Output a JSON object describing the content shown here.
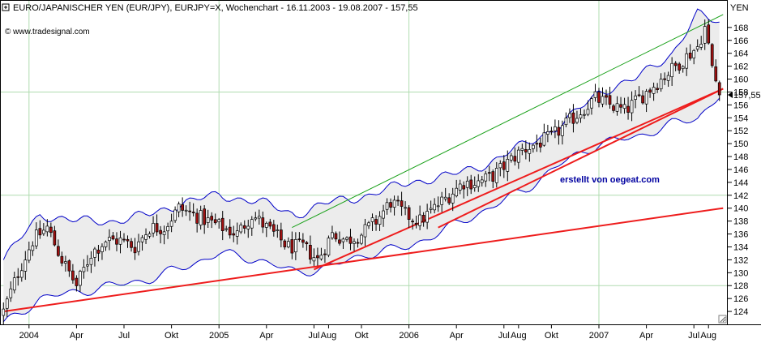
{
  "title_line": "EURO/JAPANISCHER YEN (EUR/JPY), EURJPY=X, Wochenchart - 16.11.2003 - 19.08.2007 - 157,55",
  "source_label": "© www.tradesignal.com",
  "watermark": "erstellt von oegeat.com",
  "colors": {
    "background": "#ffffff",
    "grid": "#b0dcb0",
    "candle_up": "#ffffff",
    "candle_down": "#a01010",
    "candle_border": "#000000",
    "bollinger": "#0000c8",
    "bollinger_fill": "#ececec",
    "trendline_support": "#ee1c1c",
    "trendline_channel_top": "#18a018",
    "price_marker": "#000000"
  },
  "chart_data": {
    "type": "candlestick",
    "instrument": "EUR/JPY",
    "period": "weekly",
    "date_range": [
      "2003-11-16",
      "2007-08-19"
    ],
    "last_value": "157,55",
    "last_value_num": 157.55,
    "y_axis": {
      "label": "YEN",
      "min": 122,
      "max": 172,
      "ticks": [
        124,
        126,
        128,
        130,
        132,
        134,
        136,
        138,
        140,
        142,
        144,
        146,
        148,
        150,
        152,
        154,
        156,
        158,
        160,
        162,
        164,
        166,
        168
      ]
    },
    "x_axis": {
      "tick_labels": [
        "2004",
        "Apr",
        "Jul",
        "Okt",
        "2005",
        "Apr",
        "Jul",
        "Aug",
        "Okt",
        "2006",
        "Apr",
        "Jul",
        "Aug",
        "Okt",
        "2007",
        "Apr",
        "Jul",
        "Aug"
      ],
      "tick_weeks": [
        7,
        20,
        33,
        46,
        59,
        72,
        85,
        89,
        98,
        111,
        124,
        137,
        141,
        150,
        163,
        176,
        189,
        193
      ]
    },
    "candle_weeks": 197,
    "close_anchors": [
      [
        0,
        124
      ],
      [
        4,
        130
      ],
      [
        8,
        135
      ],
      [
        12,
        137
      ],
      [
        16,
        132
      ],
      [
        20,
        128
      ],
      [
        24,
        133
      ],
      [
        28,
        135
      ],
      [
        32,
        135
      ],
      [
        36,
        134
      ],
      [
        40,
        137
      ],
      [
        44,
        137
      ],
      [
        48,
        140
      ],
      [
        52,
        139
      ],
      [
        56,
        138
      ],
      [
        60,
        137
      ],
      [
        64,
        136
      ],
      [
        68,
        139
      ],
      [
        72,
        137
      ],
      [
        78,
        134
      ],
      [
        82,
        134
      ],
      [
        86,
        132
      ],
      [
        90,
        136
      ],
      [
        94,
        135
      ],
      [
        98,
        136
      ],
      [
        102,
        138
      ],
      [
        106,
        141
      ],
      [
        110,
        139
      ],
      [
        114,
        138
      ],
      [
        118,
        140
      ],
      [
        122,
        142
      ],
      [
        126,
        144
      ],
      [
        130,
        144
      ],
      [
        134,
        145
      ],
      [
        138,
        147
      ],
      [
        142,
        149
      ],
      [
        146,
        150
      ],
      [
        150,
        151
      ],
      [
        154,
        153
      ],
      [
        158,
        155
      ],
      [
        162,
        157
      ],
      [
        166,
        156
      ],
      [
        170,
        155
      ],
      [
        174,
        157
      ],
      [
        178,
        159
      ],
      [
        182,
        161
      ],
      [
        186,
        163
      ],
      [
        190,
        165
      ],
      [
        192,
        168
      ],
      [
        194,
        162
      ],
      [
        196,
        157.55
      ]
    ],
    "bollinger_upper": [
      [
        0,
        132
      ],
      [
        10,
        139
      ],
      [
        20,
        138
      ],
      [
        30,
        138
      ],
      [
        40,
        139
      ],
      [
        50,
        141
      ],
      [
        59,
        142
      ],
      [
        70,
        141
      ],
      [
        80,
        139
      ],
      [
        90,
        141
      ],
      [
        100,
        142
      ],
      [
        111,
        144
      ],
      [
        122,
        145
      ],
      [
        133,
        147
      ],
      [
        143,
        150
      ],
      [
        153,
        153
      ],
      [
        163,
        158
      ],
      [
        173,
        160
      ],
      [
        183,
        164
      ],
      [
        190,
        170
      ],
      [
        197,
        168.5
      ]
    ],
    "bollinger_lower": [
      [
        0,
        122
      ],
      [
        10,
        126
      ],
      [
        20,
        127
      ],
      [
        30,
        128
      ],
      [
        40,
        129
      ],
      [
        50,
        131
      ],
      [
        59,
        133
      ],
      [
        70,
        132
      ],
      [
        80,
        130
      ],
      [
        90,
        131
      ],
      [
        100,
        133
      ],
      [
        111,
        134
      ],
      [
        122,
        137
      ],
      [
        133,
        140
      ],
      [
        143,
        143
      ],
      [
        153,
        147
      ],
      [
        163,
        150
      ],
      [
        173,
        151
      ],
      [
        183,
        153
      ],
      [
        190,
        154
      ],
      [
        197,
        158
      ]
    ],
    "trendlines": [
      {
        "id": "long-support",
        "color": "red",
        "points": [
          [
            0,
            124
          ],
          [
            197,
            140
          ]
        ]
      },
      {
        "id": "mid-support",
        "color": "red",
        "points": [
          [
            85,
            130.5
          ],
          [
            197,
            158.5
          ]
        ]
      },
      {
        "id": "short-support",
        "color": "red",
        "points": [
          [
            119,
            137
          ],
          [
            197,
            158.5
          ]
        ]
      },
      {
        "id": "channel-top",
        "color": "green",
        "points": [
          [
            79,
            137
          ],
          [
            197,
            170
          ]
        ]
      }
    ],
    "grid": true
  }
}
